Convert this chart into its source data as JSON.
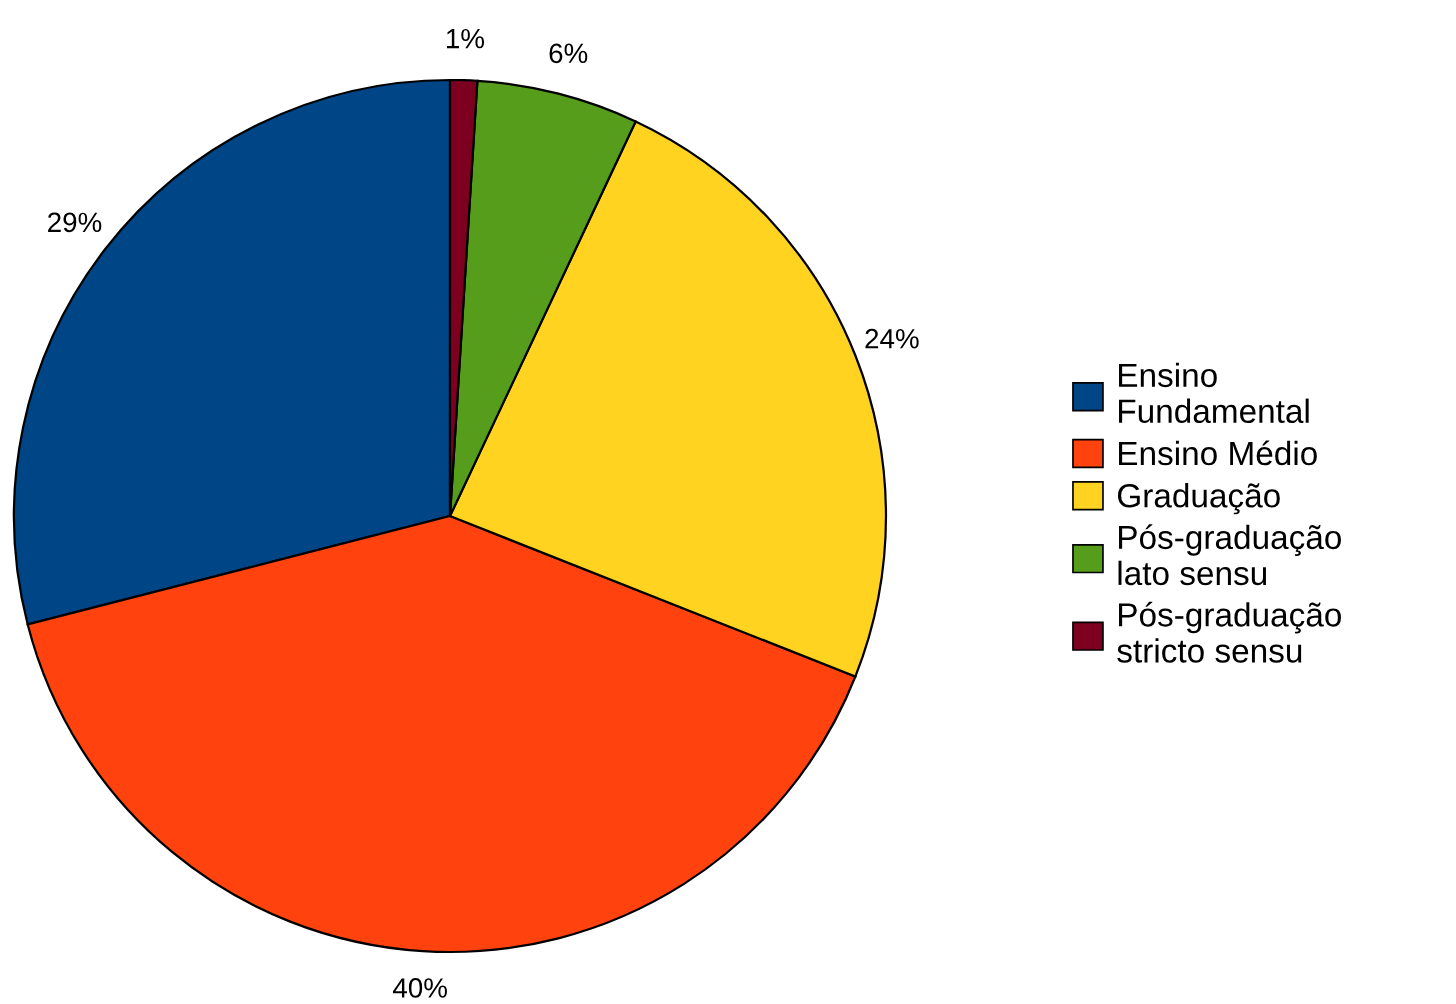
{
  "chart_data": {
    "type": "pie",
    "categories": [
      "Ensino Fundamental",
      "Ensino Médio",
      "Graduação",
      "Pós-graduação lato sensu",
      "Pós-graduação stricto sensu"
    ],
    "values": [
      29,
      40,
      24,
      6,
      1
    ],
    "value_labels": [
      "29%",
      "40%",
      "24%",
      "6%",
      "1%"
    ],
    "colors": [
      "#004586",
      "#ff420e",
      "#ffd320",
      "#579d1c",
      "#7e0021"
    ],
    "legend": "right"
  }
}
